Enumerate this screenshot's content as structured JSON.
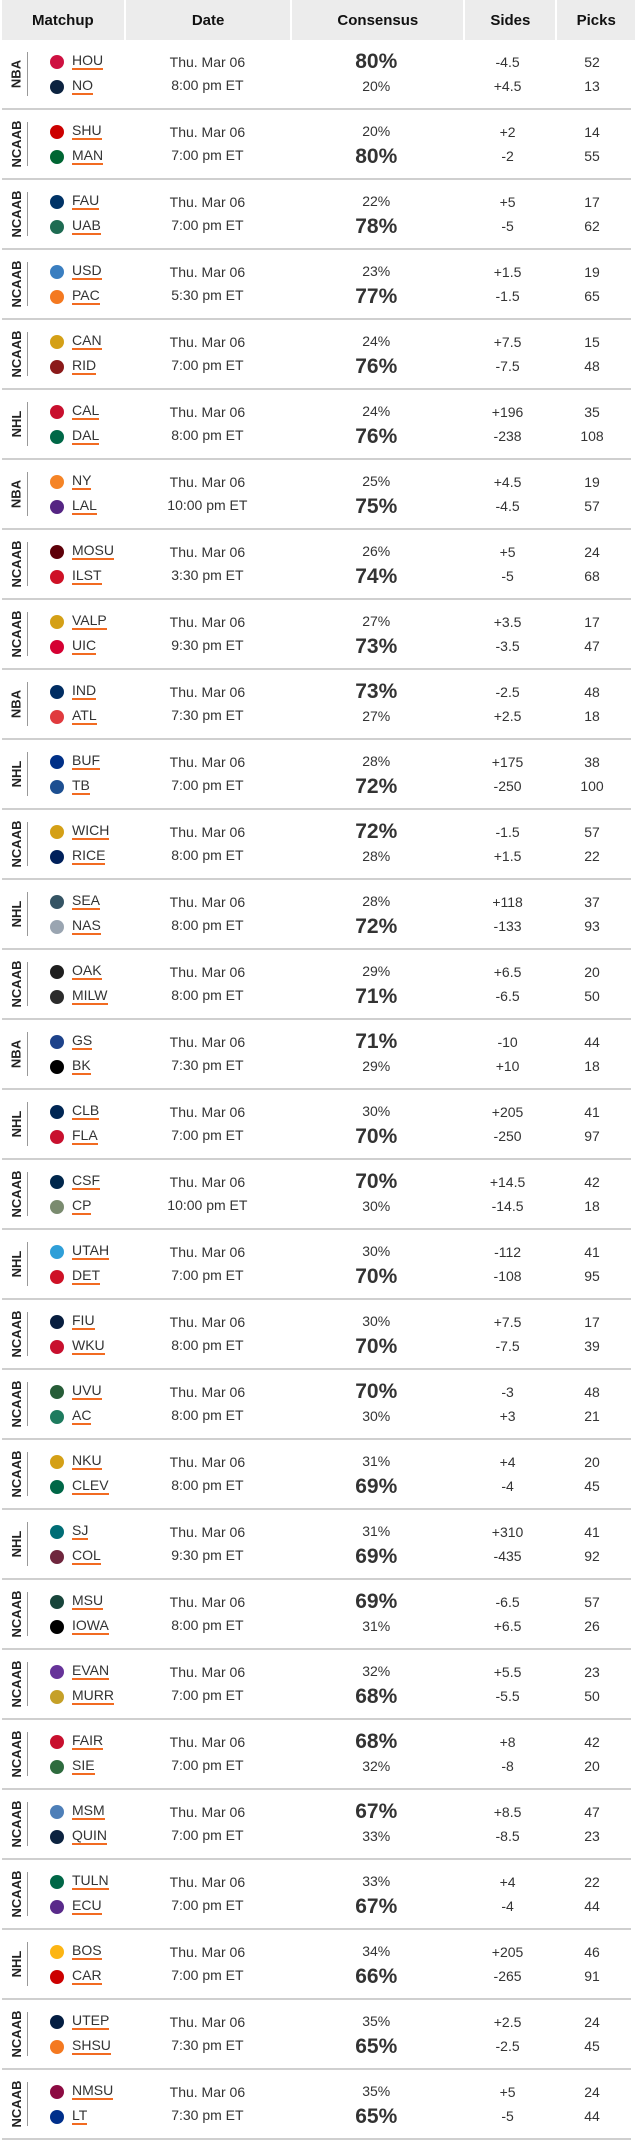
{
  "header": {
    "matchup": "Matchup",
    "date": "Date",
    "consensus": "Consensus",
    "sides": "Sides",
    "picks": "Picks"
  },
  "colors": {
    "underline": "#f26b21",
    "divider": "#cfcfcf",
    "header_bg": "#ececec"
  },
  "rows": [
    {
      "league": "NBA",
      "t1": "HOU",
      "t2": "NO",
      "day": "Thu. Mar 06",
      "time": "8:00 pm ET",
      "c1": "80%",
      "c2": "20%",
      "s1": "-4.5",
      "s2": "+4.5",
      "p1": "52",
      "p2": "13",
      "big": 1,
      "l1": "#ce1141",
      "l2": "#0c2340"
    },
    {
      "league": "NCAAB",
      "t1": "SHU",
      "t2": "MAN",
      "day": "Thu. Mar 06",
      "time": "7:00 pm ET",
      "c1": "20%",
      "c2": "80%",
      "s1": "+2",
      "s2": "-2",
      "p1": "14",
      "p2": "55",
      "big": 2,
      "l1": "#cc0000",
      "l2": "#006633"
    },
    {
      "league": "NCAAB",
      "t1": "FAU",
      "t2": "UAB",
      "day": "Thu. Mar 06",
      "time": "7:00 pm ET",
      "c1": "22%",
      "c2": "78%",
      "s1": "+5",
      "s2": "-5",
      "p1": "17",
      "p2": "62",
      "big": 2,
      "l1": "#003366",
      "l2": "#1e6b52"
    },
    {
      "league": "NCAAB",
      "t1": "USD",
      "t2": "PAC",
      "day": "Thu. Mar 06",
      "time": "5:30 pm ET",
      "c1": "23%",
      "c2": "77%",
      "s1": "+1.5",
      "s2": "-1.5",
      "p1": "19",
      "p2": "65",
      "big": 2,
      "l1": "#3a7ec0",
      "l2": "#f47920"
    },
    {
      "league": "NCAAB",
      "t1": "CAN",
      "t2": "RID",
      "day": "Thu. Mar 06",
      "time": "7:00 pm ET",
      "c1": "24%",
      "c2": "76%",
      "s1": "+7.5",
      "s2": "-7.5",
      "p1": "15",
      "p2": "48",
      "big": 2,
      "l1": "#d4a017",
      "l2": "#8b1a1a"
    },
    {
      "league": "NHL",
      "t1": "CAL",
      "t2": "DAL",
      "day": "Thu. Mar 06",
      "time": "8:00 pm ET",
      "c1": "24%",
      "c2": "76%",
      "s1": "+196",
      "s2": "-238",
      "p1": "35",
      "p2": "108",
      "big": 2,
      "l1": "#c8102e",
      "l2": "#006847"
    },
    {
      "league": "NBA",
      "t1": "NY",
      "t2": "LAL",
      "day": "Thu. Mar 06",
      "time": "10:00 pm ET",
      "c1": "25%",
      "c2": "75%",
      "s1": "+4.5",
      "s2": "-4.5",
      "p1": "19",
      "p2": "57",
      "big": 2,
      "l1": "#f58426",
      "l2": "#552583"
    },
    {
      "league": "NCAAB",
      "t1": "MOSU",
      "t2": "ILST",
      "day": "Thu. Mar 06",
      "time": "3:30 pm ET",
      "c1": "26%",
      "c2": "74%",
      "s1": "+5",
      "s2": "-5",
      "p1": "24",
      "p2": "68",
      "big": 2,
      "l1": "#5e0009",
      "l2": "#ce1126"
    },
    {
      "league": "NCAAB",
      "t1": "VALP",
      "t2": "UIC",
      "day": "Thu. Mar 06",
      "time": "9:30 pm ET",
      "c1": "27%",
      "c2": "73%",
      "s1": "+3.5",
      "s2": "-3.5",
      "p1": "17",
      "p2": "47",
      "big": 2,
      "l1": "#d4a017",
      "l2": "#d50032"
    },
    {
      "league": "NBA",
      "t1": "IND",
      "t2": "ATL",
      "day": "Thu. Mar 06",
      "time": "7:30 pm ET",
      "c1": "73%",
      "c2": "27%",
      "s1": "-2.5",
      "s2": "+2.5",
      "p1": "48",
      "p2": "18",
      "big": 1,
      "l1": "#002d62",
      "l2": "#e03a3e"
    },
    {
      "league": "NHL",
      "t1": "BUF",
      "t2": "TB",
      "day": "Thu. Mar 06",
      "time": "7:00 pm ET",
      "c1": "28%",
      "c2": "72%",
      "s1": "+175",
      "s2": "-250",
      "p1": "38",
      "p2": "100",
      "big": 2,
      "l1": "#003087",
      "l2": "#1d4f91"
    },
    {
      "league": "NCAAB",
      "t1": "WICH",
      "t2": "RICE",
      "day": "Thu. Mar 06",
      "time": "8:00 pm ET",
      "c1": "72%",
      "c2": "28%",
      "s1": "-1.5",
      "s2": "+1.5",
      "p1": "57",
      "p2": "22",
      "big": 1,
      "l1": "#d4a017",
      "l2": "#00205b"
    },
    {
      "league": "NHL",
      "t1": "SEA",
      "t2": "NAS",
      "day": "Thu. Mar 06",
      "time": "8:00 pm ET",
      "c1": "28%",
      "c2": "72%",
      "s1": "+118",
      "s2": "-133",
      "p1": "37",
      "p2": "93",
      "big": 2,
      "l1": "#355464",
      "l2": "#9aa5b1"
    },
    {
      "league": "NCAAB",
      "t1": "OAK",
      "t2": "MILW",
      "day": "Thu. Mar 06",
      "time": "8:00 pm ET",
      "c1": "29%",
      "c2": "71%",
      "s1": "+6.5",
      "s2": "-6.5",
      "p1": "20",
      "p2": "50",
      "big": 2,
      "l1": "#1f1f1f",
      "l2": "#2b2b2b"
    },
    {
      "league": "NBA",
      "t1": "GS",
      "t2": "BK",
      "day": "Thu. Mar 06",
      "time": "7:30 pm ET",
      "c1": "71%",
      "c2": "29%",
      "s1": "-10",
      "s2": "+10",
      "p1": "44",
      "p2": "18",
      "big": 1,
      "l1": "#1d428a",
      "l2": "#000000"
    },
    {
      "league": "NHL",
      "t1": "CLB",
      "t2": "FLA",
      "day": "Thu. Mar 06",
      "time": "7:00 pm ET",
      "c1": "30%",
      "c2": "70%",
      "s1": "+205",
      "s2": "-250",
      "p1": "41",
      "p2": "97",
      "big": 2,
      "l1": "#002654",
      "l2": "#c8102e"
    },
    {
      "league": "NCAAB",
      "t1": "CSF",
      "t2": "CP",
      "day": "Thu. Mar 06",
      "time": "10:00 pm ET",
      "c1": "70%",
      "c2": "30%",
      "s1": "+14.5",
      "s2": "-14.5",
      "p1": "42",
      "p2": "18",
      "big": 1,
      "l1": "#00274c",
      "l2": "#7a8b6f"
    },
    {
      "league": "NHL",
      "t1": "UTAH",
      "t2": "DET",
      "day": "Thu. Mar 06",
      "time": "7:00 pm ET",
      "c1": "30%",
      "c2": "70%",
      "s1": "-112",
      "s2": "-108",
      "p1": "41",
      "p2": "95",
      "big": 2,
      "l1": "#2f9fd8",
      "l2": "#ce1126"
    },
    {
      "league": "NCAAB",
      "t1": "FIU",
      "t2": "WKU",
      "day": "Thu. Mar 06",
      "time": "8:00 pm ET",
      "c1": "30%",
      "c2": "70%",
      "s1": "+7.5",
      "s2": "-7.5",
      "p1": "17",
      "p2": "39",
      "big": 2,
      "l1": "#081e3f",
      "l2": "#c8102e"
    },
    {
      "league": "NCAAB",
      "t1": "UVU",
      "t2": "AC",
      "day": "Thu. Mar 06",
      "time": "8:00 pm ET",
      "c1": "70%",
      "c2": "30%",
      "s1": "-3",
      "s2": "+3",
      "p1": "48",
      "p2": "21",
      "big": 1,
      "l1": "#275d38",
      "l2": "#1e7b5e"
    },
    {
      "league": "NCAAB",
      "t1": "NKU",
      "t2": "CLEV",
      "day": "Thu. Mar 06",
      "time": "8:00 pm ET",
      "c1": "31%",
      "c2": "69%",
      "s1": "+4",
      "s2": "-4",
      "p1": "20",
      "p2": "45",
      "big": 2,
      "l1": "#d4a017",
      "l2": "#006747"
    },
    {
      "league": "NHL",
      "t1": "SJ",
      "t2": "COL",
      "day": "Thu. Mar 06",
      "time": "9:30 pm ET",
      "c1": "31%",
      "c2": "69%",
      "s1": "+310",
      "s2": "-435",
      "p1": "41",
      "p2": "92",
      "big": 2,
      "l1": "#006d75",
      "l2": "#6f263d"
    },
    {
      "league": "NCAAB",
      "t1": "MSU",
      "t2": "IOWA",
      "day": "Thu. Mar 06",
      "time": "8:00 pm ET",
      "c1": "69%",
      "c2": "31%",
      "s1": "-6.5",
      "s2": "+6.5",
      "p1": "57",
      "p2": "26",
      "big": 1,
      "l1": "#18453b",
      "l2": "#000000"
    },
    {
      "league": "NCAAB",
      "t1": "EVAN",
      "t2": "MURR",
      "day": "Thu. Mar 06",
      "time": "7:00 pm ET",
      "c1": "32%",
      "c2": "68%",
      "s1": "+5.5",
      "s2": "-5.5",
      "p1": "23",
      "p2": "50",
      "big": 2,
      "l1": "#663399",
      "l2": "#c5a028"
    },
    {
      "league": "NCAAB",
      "t1": "FAIR",
      "t2": "SIE",
      "day": "Thu. Mar 06",
      "time": "7:00 pm ET",
      "c1": "68%",
      "c2": "32%",
      "s1": "+8",
      "s2": "-8",
      "p1": "42",
      "p2": "20",
      "big": 1,
      "l1": "#c8102e",
      "l2": "#2e6b3e"
    },
    {
      "league": "NCAAB",
      "t1": "MSM",
      "t2": "QUIN",
      "day": "Thu. Mar 06",
      "time": "7:00 pm ET",
      "c1": "67%",
      "c2": "33%",
      "s1": "+8.5",
      "s2": "-8.5",
      "p1": "47",
      "p2": "23",
      "big": 1,
      "l1": "#4e7fb8",
      "l2": "#0c2340"
    },
    {
      "league": "NCAAB",
      "t1": "TULN",
      "t2": "ECU",
      "day": "Thu. Mar 06",
      "time": "7:00 pm ET",
      "c1": "33%",
      "c2": "67%",
      "s1": "+4",
      "s2": "-4",
      "p1": "22",
      "p2": "44",
      "big": 2,
      "l1": "#006747",
      "l2": "#592a8a"
    },
    {
      "league": "NHL",
      "t1": "BOS",
      "t2": "CAR",
      "day": "Thu. Mar 06",
      "time": "7:00 pm ET",
      "c1": "34%",
      "c2": "66%",
      "s1": "+205",
      "s2": "-265",
      "p1": "46",
      "p2": "91",
      "big": 2,
      "l1": "#fcb514",
      "l2": "#cc0000"
    },
    {
      "league": "NCAAB",
      "t1": "UTEP",
      "t2": "SHSU",
      "day": "Thu. Mar 06",
      "time": "7:30 pm ET",
      "c1": "35%",
      "c2": "65%",
      "s1": "+2.5",
      "s2": "-2.5",
      "p1": "24",
      "p2": "45",
      "big": 2,
      "l1": "#041e42",
      "l2": "#f47920"
    },
    {
      "league": "NCAAB",
      "t1": "NMSU",
      "t2": "LT",
      "day": "Thu. Mar 06",
      "time": "7:30 pm ET",
      "c1": "35%",
      "c2": "65%",
      "s1": "+5",
      "s2": "-5",
      "p1": "24",
      "p2": "44",
      "big": 2,
      "l1": "#8c0b42",
      "l2": "#002f8b"
    }
  ]
}
